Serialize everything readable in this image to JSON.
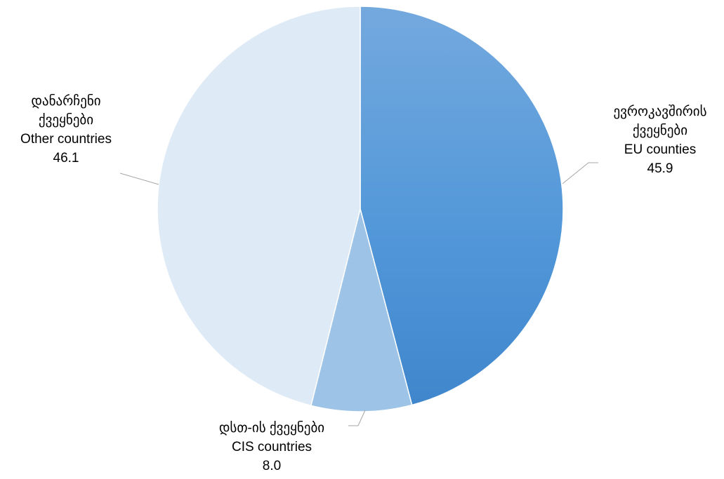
{
  "chart_data": {
    "type": "pie",
    "start_angle_deg": 0,
    "direction": "clockwise",
    "slices": [
      {
        "label_ka": "ევროკავშირის ქვეყნები",
        "label_ka_lines": [
          "ევროკავშირის",
          "ქვეყნები"
        ],
        "label_en": "EU counties",
        "value": 45.9,
        "value_text": "45.9",
        "color": "#4e93d6"
      },
      {
        "label_ka": "დსთ-ის ქვეყნები",
        "label_ka_lines": [
          "დსთ-ის ქვეყნები"
        ],
        "label_en": "CIS countries",
        "value": 8.0,
        "value_text": "8.0",
        "color": "#9dc3e6"
      },
      {
        "label_ka": "დანარჩენი ქვეყნები",
        "label_ka_lines": [
          "დანარჩენი",
          "ქვეყნები"
        ],
        "label_en": "Other countries",
        "value": 46.1,
        "value_text": "46.1",
        "color": "#deebf7"
      }
    ],
    "legend": "none"
  }
}
